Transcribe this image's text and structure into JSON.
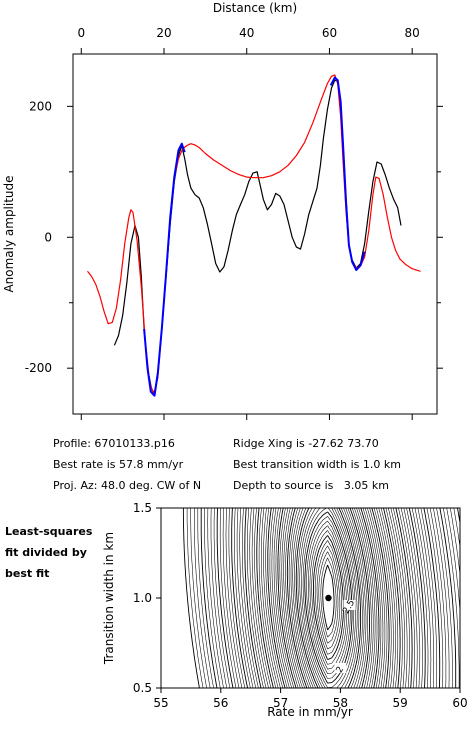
{
  "chart_data": [
    {
      "type": "line",
      "title": "",
      "xlabel": "Distance (km)",
      "ylabel": "Anomaly amplitude",
      "xlim": [
        -2,
        86
      ],
      "ylim": [
        -270,
        280
      ],
      "xticks": [
        0,
        20,
        40,
        60,
        80
      ],
      "yticks": [
        -200,
        0,
        200
      ],
      "xaxis_position": "top",
      "grid": false,
      "legend": "none",
      "series": [
        {
          "color": "#000000",
          "points": [
            [
              8,
              -165
            ],
            [
              9,
              -150
            ],
            [
              10,
              -120
            ],
            [
              11,
              -70
            ],
            [
              12,
              -10
            ],
            [
              13,
              18
            ],
            [
              13.8,
              0
            ],
            [
              14.5,
              -60
            ],
            [
              15.2,
              -140
            ],
            [
              16,
              -200
            ],
            [
              17,
              -232
            ],
            [
              17.7,
              -238
            ],
            [
              18.5,
              -205
            ],
            [
              19.5,
              -140
            ],
            [
              20.5,
              -60
            ],
            [
              21.5,
              20
            ],
            [
              22.5,
              85
            ],
            [
              23.5,
              125
            ],
            [
              24.3,
              140
            ],
            [
              25,
              120
            ],
            [
              25.7,
              95
            ],
            [
              26.5,
              75
            ],
            [
              27.5,
              65
            ],
            [
              28.5,
              60
            ],
            [
              29.5,
              45
            ],
            [
              30.5,
              20
            ],
            [
              31.5,
              -10
            ],
            [
              32.5,
              -40
            ],
            [
              33.5,
              -53
            ],
            [
              34.5,
              -45
            ],
            [
              35.5,
              -20
            ],
            [
              36.5,
              10
            ],
            [
              37.5,
              35
            ],
            [
              38.5,
              50
            ],
            [
              39.5,
              65
            ],
            [
              40.5,
              85
            ],
            [
              41.5,
              98
            ],
            [
              42.5,
              100
            ],
            [
              43.3,
              78
            ],
            [
              44,
              58
            ],
            [
              45,
              42
            ],
            [
              46,
              50
            ],
            [
              47,
              67
            ],
            [
              48,
              63
            ],
            [
              49,
              50
            ],
            [
              50,
              25
            ],
            [
              51,
              0
            ],
            [
              52,
              -15
            ],
            [
              53,
              -18
            ],
            [
              54,
              5
            ],
            [
              55,
              35
            ],
            [
              56,
              55
            ],
            [
              57,
              75
            ],
            [
              57.8,
              110
            ],
            [
              58.5,
              150
            ],
            [
              59.5,
              195
            ],
            [
              60.5,
              228
            ],
            [
              61.3,
              240
            ],
            [
              62,
              238
            ],
            [
              62.7,
              205
            ],
            [
              63.3,
              140
            ],
            [
              64,
              60
            ],
            [
              64.7,
              -10
            ],
            [
              65.5,
              -35
            ],
            [
              66.5,
              -47
            ],
            [
              67.5,
              -40
            ],
            [
              68.5,
              -10
            ],
            [
              69.5,
              40
            ],
            [
              70.5,
              85
            ],
            [
              71.5,
              115
            ],
            [
              72.5,
              112
            ],
            [
              73.5,
              95
            ],
            [
              74.5,
              75
            ],
            [
              75.5,
              58
            ],
            [
              76.5,
              45
            ],
            [
              77.3,
              18
            ]
          ]
        },
        {
          "color": "#ff0000",
          "points": [
            [
              1.5,
              -52
            ],
            [
              2.5,
              -60
            ],
            [
              3.5,
              -72
            ],
            [
              4.5,
              -90
            ],
            [
              5.5,
              -113
            ],
            [
              6.5,
              -132
            ],
            [
              7.5,
              -130
            ],
            [
              8.5,
              -108
            ],
            [
              9.5,
              -65
            ],
            [
              10.5,
              -10
            ],
            [
              11.5,
              30
            ],
            [
              12,
              42
            ],
            [
              12.5,
              38
            ],
            [
              13.5,
              -5
            ],
            [
              14.5,
              -75
            ],
            [
              15.5,
              -160
            ],
            [
              16.5,
              -220
            ],
            [
              17.5,
              -240
            ],
            [
              18.5,
              -215
            ],
            [
              19.5,
              -140
            ],
            [
              20.5,
              -55
            ],
            [
              21.5,
              30
            ],
            [
              22.5,
              90
            ],
            [
              23.5,
              120
            ],
            [
              24.5,
              135
            ],
            [
              25.5,
              140
            ],
            [
              26.5,
              143
            ],
            [
              27.5,
              141
            ],
            [
              28.5,
              137
            ],
            [
              30,
              128
            ],
            [
              32,
              118
            ],
            [
              34,
              110
            ],
            [
              36,
              102
            ],
            [
              38,
              96
            ],
            [
              40,
              92
            ],
            [
              42,
              91
            ],
            [
              44,
              91
            ],
            [
              46,
              94
            ],
            [
              48,
              100
            ],
            [
              50,
              110
            ],
            [
              52,
              125
            ],
            [
              54,
              145
            ],
            [
              56,
              175
            ],
            [
              58,
              210
            ],
            [
              59.5,
              235
            ],
            [
              60.5,
              246
            ],
            [
              61.3,
              248
            ],
            [
              62,
              235
            ],
            [
              62.7,
              185
            ],
            [
              63.3,
              115
            ],
            [
              64,
              40
            ],
            [
              64.7,
              -15
            ],
            [
              65.5,
              -38
            ],
            [
              66.5,
              -47
            ],
            [
              67.5,
              -44
            ],
            [
              68.5,
              -30
            ],
            [
              69.5,
              10
            ],
            [
              70.5,
              65
            ],
            [
              71.2,
              92
            ],
            [
              72,
              90
            ],
            [
              73,
              65
            ],
            [
              74,
              30
            ],
            [
              75,
              0
            ],
            [
              76,
              -20
            ],
            [
              77,
              -33
            ],
            [
              78.5,
              -42
            ],
            [
              80,
              -48
            ],
            [
              82,
              -52
            ]
          ]
        },
        {
          "color": "#0000ff",
          "points": [
            [
              15.2,
              -140
            ],
            [
              16,
              -200
            ],
            [
              16.8,
              -236
            ],
            [
              17.7,
              -242
            ],
            [
              18.5,
              -208
            ],
            [
              19.5,
              -138
            ],
            [
              20.5,
              -55
            ],
            [
              21.5,
              30
            ],
            [
              22.5,
              92
            ],
            [
              23.5,
              133
            ],
            [
              24.3,
              143
            ],
            [
              25,
              130
            ],
            [
              60.3,
              232
            ],
            [
              61.3,
              244
            ],
            [
              62,
              240
            ],
            [
              62.7,
              208
            ],
            [
              63.3,
              140
            ],
            [
              64,
              55
            ],
            [
              64.7,
              -12
            ],
            [
              65.5,
              -38
            ],
            [
              66.5,
              -50
            ],
            [
              67.5,
              -43
            ],
            [
              68.5,
              -22
            ]
          ]
        }
      ]
    },
    {
      "type": "contour",
      "title": "",
      "xlabel": "Rate in mm/yr",
      "ylabel": "Transition width in km",
      "xlim": [
        55,
        60
      ],
      "ylim": [
        0.5,
        1.5
      ],
      "xticks": [
        55,
        56,
        57,
        58,
        59,
        60
      ],
      "yticks": [
        0.5,
        1.0,
        1.5
      ],
      "xtick_labels": [
        "55",
        "56",
        "57",
        "58",
        "59",
        "60"
      ],
      "ytick_labels": [
        "0.5",
        "1.0",
        "1.5"
      ],
      "side_label": [
        "Least-squares",
        "fit divided by",
        "best fit"
      ],
      "best_fit": {
        "rate": 57.8,
        "width": 1.0
      },
      "contour_labels": [
        {
          "text": "2.5",
          "rate": 58.15,
          "width": 0.95
        },
        {
          "text": "2",
          "rate": 58.0,
          "width": 0.6
        }
      ]
    }
  ],
  "info": {
    "left": [
      "Profile: 67010133.p16",
      "Best rate is 57.8 mm/yr",
      "Proj. Az: 48.0 deg. CW of N"
    ],
    "right": [
      "Ridge Xing is -27.62 73.70",
      "Best transition width is 1.0 km",
      "Depth to source is   3.05 km"
    ]
  }
}
